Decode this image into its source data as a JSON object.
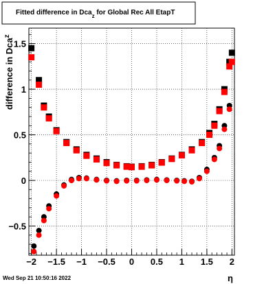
{
  "chart_data": {
    "type": "scatter",
    "title": "Fitted difference in Dca",
    "title_subscript": "z",
    "title_suffix": " for Global Rec All EtapT",
    "xlabel": "η",
    "ylabel": "difference in Dca",
    "ylabel_subscript": "z",
    "xlim": [
      -2.05,
      2.05
    ],
    "ylim": [
      -0.82,
      1.67
    ],
    "xticks": [
      -2,
      -1.5,
      -1,
      -0.5,
      0,
      0.5,
      1,
      1.5,
      2
    ],
    "xtick_labels": [
      "−2",
      "−1.5",
      "−1",
      "−0.5",
      "0",
      "0.5",
      "1",
      "1.5",
      "2"
    ],
    "yticks": [
      -0.5,
      0,
      0.5,
      1,
      1.5
    ],
    "ytick_labels": [
      "−0.5",
      "0",
      "0.5",
      "1",
      "1.5"
    ],
    "grid": true,
    "series": [
      {
        "marker": "square",
        "color": "#000000",
        "x": [
          -2.0,
          -1.85,
          -1.75,
          -1.65,
          -1.5,
          -1.3,
          -1.1,
          -0.9,
          -0.7,
          -0.5,
          -0.3,
          -0.1,
          0.0,
          0.2,
          0.4,
          0.6,
          0.8,
          1.0,
          1.2,
          1.4,
          1.55,
          1.65,
          1.75,
          1.85,
          1.95,
          2.0
        ],
        "y": [
          1.45,
          1.1,
          0.82,
          0.7,
          0.55,
          0.42,
          0.34,
          0.28,
          0.24,
          0.2,
          0.17,
          0.155,
          0.15,
          0.155,
          0.17,
          0.2,
          0.24,
          0.28,
          0.34,
          0.42,
          0.52,
          0.62,
          0.78,
          1.0,
          1.3,
          1.4
        ]
      },
      {
        "marker": "square",
        "color": "#ff0000",
        "x": [
          -2.0,
          -1.85,
          -1.75,
          -1.65,
          -1.5,
          -1.3,
          -1.1,
          -0.9,
          -0.7,
          -0.5,
          -0.3,
          -0.1,
          0.0,
          0.2,
          0.4,
          0.6,
          0.8,
          1.0,
          1.2,
          1.4,
          1.55,
          1.65,
          1.75,
          1.85,
          1.95,
          2.0
        ],
        "y": [
          1.35,
          1.05,
          0.8,
          0.68,
          0.54,
          0.41,
          0.33,
          0.27,
          0.23,
          0.19,
          0.165,
          0.15,
          0.145,
          0.15,
          0.165,
          0.195,
          0.235,
          0.275,
          0.33,
          0.41,
          0.5,
          0.6,
          0.76,
          0.97,
          1.25,
          1.3
        ]
      },
      {
        "marker": "circle",
        "color": "#000000",
        "x": [
          -1.95,
          -1.85,
          -1.75,
          -1.65,
          -1.5,
          -1.35,
          -1.2,
          -1.05,
          -0.9,
          -0.7,
          -0.5,
          -0.3,
          -0.1,
          0.1,
          0.3,
          0.5,
          0.7,
          0.9,
          1.05,
          1.2,
          1.35,
          1.5,
          1.65,
          1.75,
          1.85,
          1.95
        ],
        "y": [
          -0.72,
          -0.55,
          -0.4,
          -0.28,
          -0.15,
          -0.05,
          0.01,
          0.03,
          0.025,
          0.01,
          0.0,
          -0.005,
          0.0,
          0.0,
          0.005,
          0.01,
          0.005,
          0.0,
          -0.005,
          -0.01,
          0.03,
          0.12,
          0.25,
          0.38,
          0.6,
          0.82
        ]
      },
      {
        "marker": "circle",
        "color": "#ff0000",
        "x": [
          -1.95,
          -1.85,
          -1.75,
          -1.65,
          -1.5,
          -1.35,
          -1.2,
          -1.05,
          -0.9,
          -0.7,
          -0.5,
          -0.3,
          -0.1,
          0.1,
          0.3,
          0.5,
          0.7,
          0.9,
          1.05,
          1.2,
          1.35,
          1.5,
          1.65,
          1.75,
          1.85,
          1.95
        ],
        "y": [
          -0.78,
          -0.6,
          -0.44,
          -0.31,
          -0.17,
          -0.06,
          0.0,
          0.02,
          0.02,
          0.005,
          -0.005,
          -0.01,
          -0.005,
          -0.005,
          0.0,
          0.005,
          0.0,
          -0.005,
          -0.01,
          -0.015,
          0.02,
          0.1,
          0.23,
          0.35,
          0.56,
          0.78
        ]
      }
    ]
  },
  "footer": {
    "timestamp": "Wed Sep 21 10:50:16 2022"
  }
}
